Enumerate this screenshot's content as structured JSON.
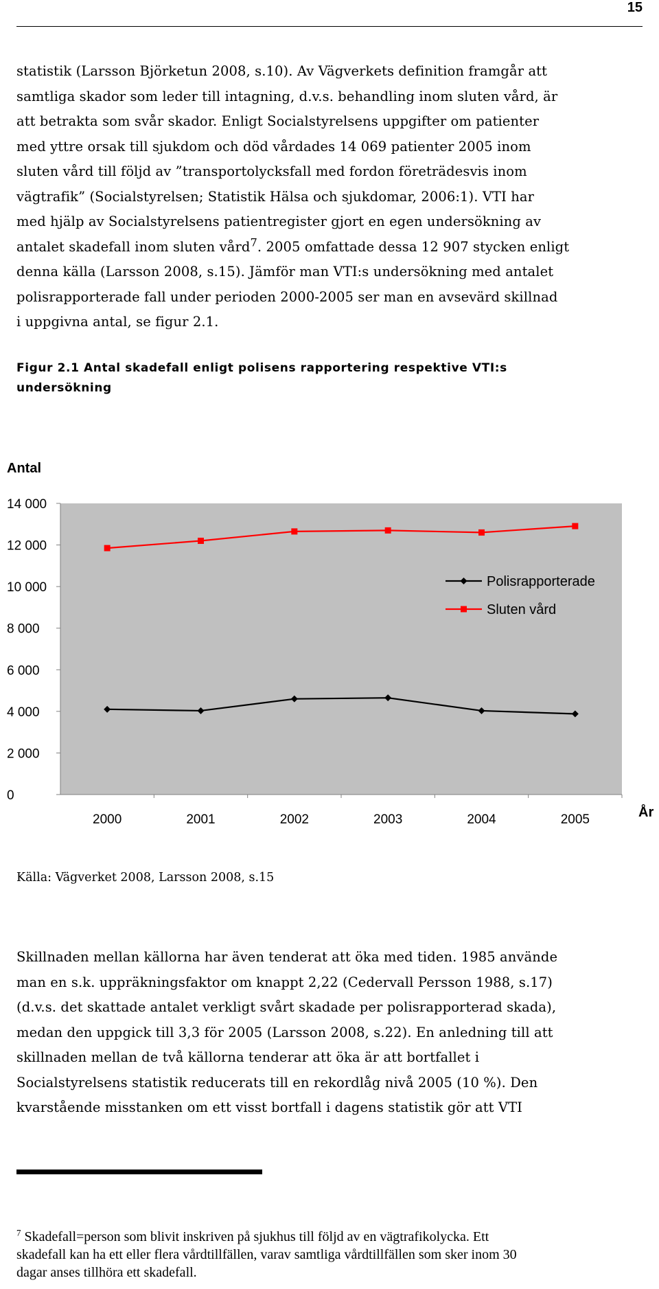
{
  "page_number": "15",
  "paragraph1": [
    "statistik (Larsson Björketun 2008, s.10). Av Vägverkets definition framgår att",
    "samtliga skador som leder till intagning, d.v.s. behandling inom sluten vård, är",
    "att betrakta som svår skador. Enligt Socialstyrelsens uppgifter om patienter",
    "med yttre orsak till sjukdom och död vårdades 14 069 patienter 2005 inom",
    "sluten vård till följd av ”transportolycksfall med fordon företrädesvis inom",
    "vägtrafik” (Socialstyrelsen; Statistik Hälsa och sjukdomar, 2006:1). VTI har",
    "med hjälp av Socialstyrelsens patientregister gjort en egen undersökning av",
    "antalet skadefall inom sluten vård",
    ". 2005 omfattade dessa 12 907 stycken enligt",
    "denna källa (Larsson 2008, s.15). Jämför man VTI:s undersökning med antalet",
    "polisrapporterade fall under perioden 2000-2005 ser man en avsevärd skillnad",
    "i uppgivna antal, se figur 2.1."
  ],
  "footnote_ref": "7",
  "figure": {
    "title_line1": "Figur 2.1 Antal skadefall enligt polisens rapportering respektive VTI:s",
    "title_line2": "undersökning",
    "source": "Källa: Vägverket 2008, Larsson 2008, s.15"
  },
  "chart_data": {
    "type": "line",
    "ylabel": "Antal",
    "xlabel": "År",
    "x": [
      "2000",
      "2001",
      "2002",
      "2003",
      "2004",
      "2005"
    ],
    "yticks": [
      "0",
      "2 000",
      "4 000",
      "6 000",
      "8 000",
      "10 000",
      "12 000",
      "14 000"
    ],
    "ylim": [
      0,
      14000
    ],
    "grid": false,
    "legend_position": "right",
    "series": [
      {
        "name": "Polisrapporterade",
        "values": [
          4100,
          4030,
          4600,
          4650,
          4030,
          3880
        ],
        "color": "#000000",
        "marker": "diamond"
      },
      {
        "name": "Sluten vård",
        "values": [
          11850,
          12200,
          12650,
          12700,
          12600,
          12907
        ],
        "color": "#ff0000",
        "marker": "square"
      }
    ],
    "plot_background": "#c0c0c0"
  },
  "paragraph2": [
    "Skillnaden mellan källorna har även tenderat att öka med tiden. 1985 använde",
    "man en s.k. uppräkningsfaktor om knappt 2,22 (Cedervall Persson 1988, s.17)",
    "(d.v.s. det skattade antalet verkligt svårt skadade per polisrapporterad skada),",
    "medan den uppgick till 3,3 för 2005 (Larsson 2008, s.22). En anledning till att",
    "skillnaden mellan de två källorna tenderar att öka är att bortfallet i",
    "Socialstyrelsens statistik reducerats till en rekordlåg nivå 2005 (10 %). Den",
    "kvarstående misstanken om ett visst bortfall i dagens statistik gör att VTI"
  ],
  "footnote": {
    "number": "7",
    "line1": " Skadefall=person som blivit inskriven på sjukhus till följd av en vägtrafikolycka. Ett",
    "line2": "skadefall kan ha ett eller flera vårdtillfällen, varav samtliga vårdtillfällen som sker inom 30",
    "line3": "dagar anses tillhöra ett skadefall."
  }
}
